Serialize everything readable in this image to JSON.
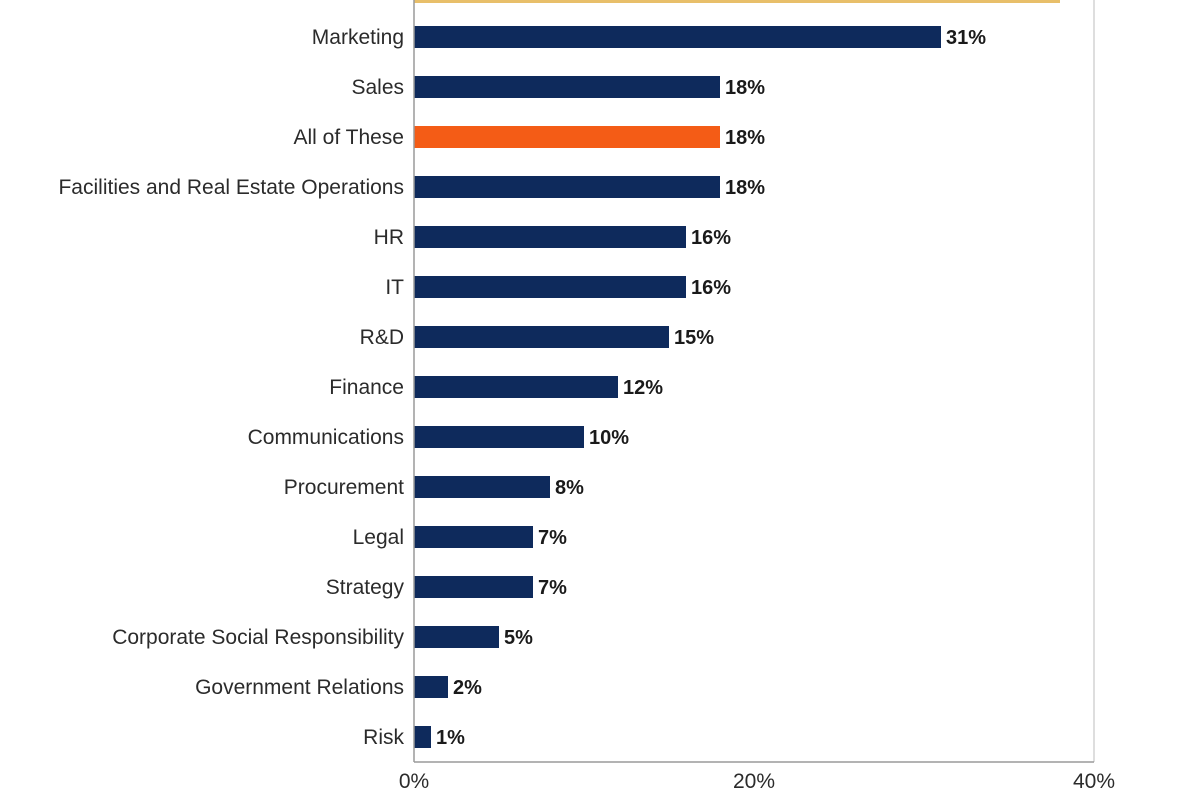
{
  "chart_data": {
    "type": "bar",
    "orientation": "horizontal",
    "xlim": [
      0,
      40
    ],
    "xticks": [
      "0%",
      "20%",
      "40%"
    ],
    "grid": true,
    "bar_color": "#0e2a5c",
    "highlight_color": "#f45c16",
    "partial_top_color": "#e8bf6a",
    "categories": [
      "Marketing",
      "Sales",
      "All of These",
      "Facilities and Real Estate Operations",
      "HR",
      "IT",
      "R&D",
      "Finance",
      "Communications",
      "Procurement",
      "Legal",
      "Strategy",
      "Corporate Social Responsibility",
      "Government Relations",
      "Risk"
    ],
    "values": [
      31,
      18,
      18,
      18,
      16,
      16,
      15,
      12,
      10,
      8,
      7,
      7,
      5,
      2,
      1
    ],
    "value_labels": [
      "31%",
      "18%",
      "18%",
      "18%",
      "16%",
      "16%",
      "15%",
      "12%",
      "10%",
      "8%",
      "7%",
      "7%",
      "5%",
      "2%",
      "1%"
    ],
    "highlight": [
      "All of These"
    ]
  }
}
